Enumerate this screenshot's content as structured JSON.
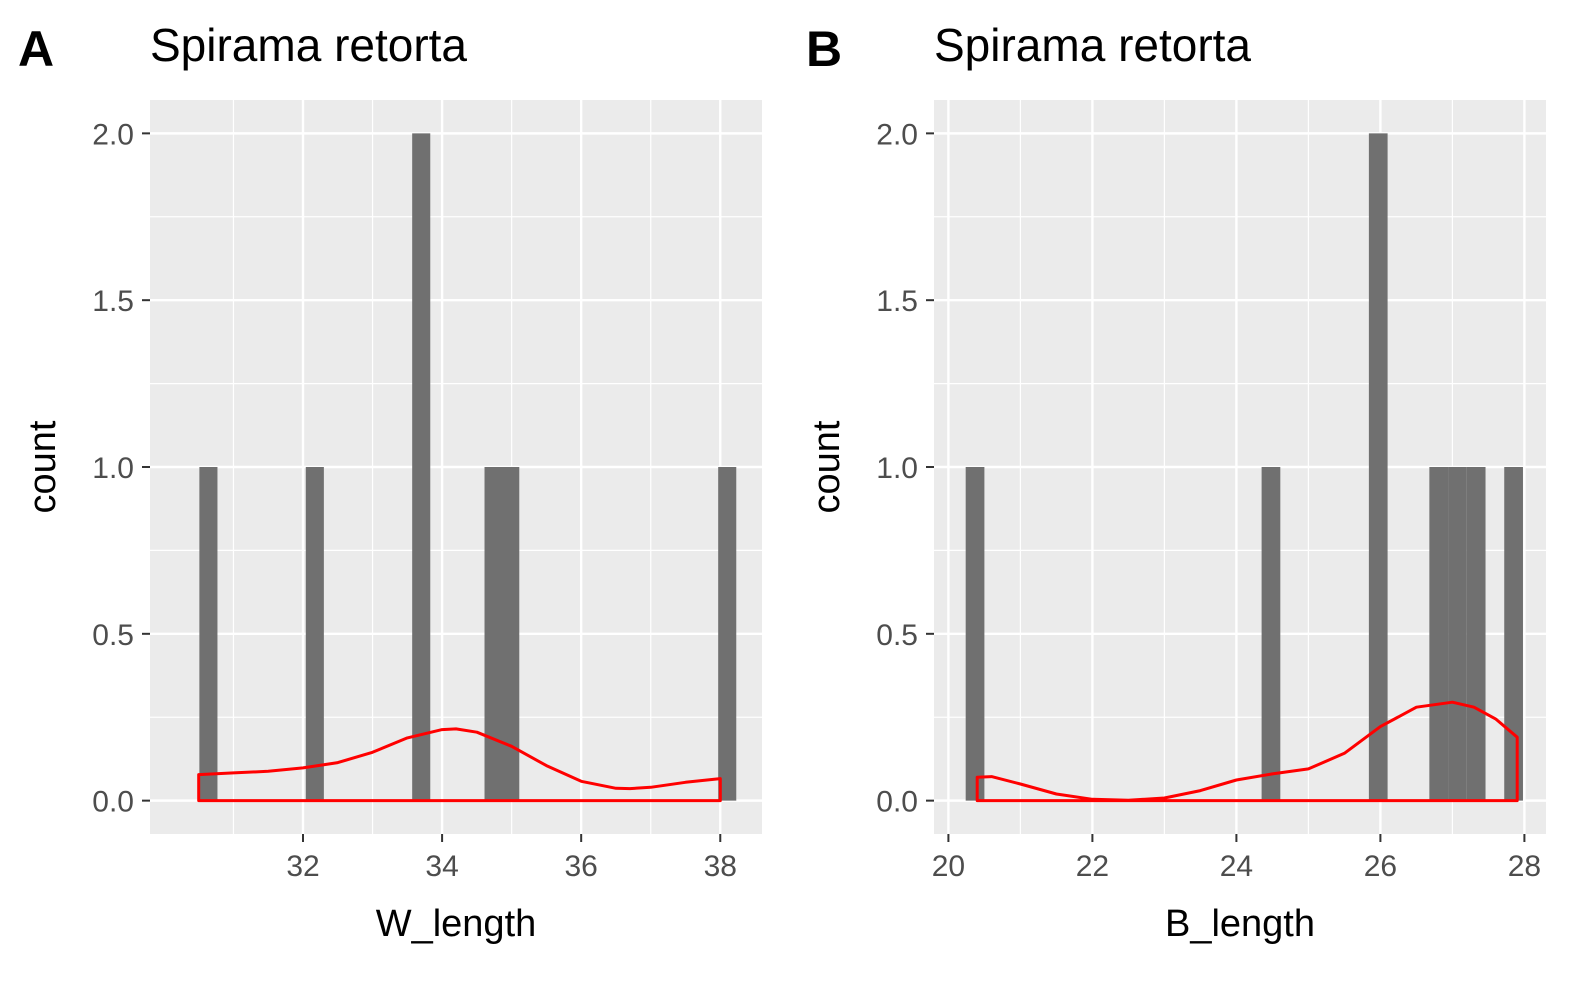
{
  "panels": [
    {
      "label": "A",
      "title": "Spirama retorta"
    },
    {
      "label": "B",
      "title": "Spirama retorta"
    }
  ],
  "chart_data": [
    {
      "type": "bar",
      "title": "Spirama retorta",
      "panel_label": "A",
      "xlabel": "W_length",
      "ylabel": "count",
      "xlim": [
        29.8,
        38.6
      ],
      "ylim": [
        -0.1,
        2.1
      ],
      "xticks": [
        32,
        34,
        36,
        38
      ],
      "yticks": [
        0.0,
        0.5,
        1.0,
        1.5,
        2.0
      ],
      "xtick_labels": [
        "32",
        "34",
        "36",
        "38"
      ],
      "ytick_labels": [
        "0.0",
        "0.5",
        "1.0",
        "1.5",
        "2.0"
      ],
      "bin_width": 0.26,
      "bins": [
        {
          "x": 30.64,
          "count": 1
        },
        {
          "x": 32.17,
          "count": 1
        },
        {
          "x": 33.7,
          "count": 2
        },
        {
          "x": 34.74,
          "count": 1
        },
        {
          "x": 34.98,
          "count": 1
        },
        {
          "x": 38.1,
          "count": 1
        }
      ],
      "density": {
        "x": [
          30.5,
          31.0,
          31.5,
          32.0,
          32.5,
          33.0,
          33.5,
          34.0,
          34.2,
          34.5,
          35.0,
          35.5,
          36.0,
          36.5,
          36.7,
          37.0,
          37.5,
          38.0
        ],
        "y": [
          0.078,
          0.083,
          0.088,
          0.098,
          0.114,
          0.145,
          0.188,
          0.213,
          0.215,
          0.205,
          0.163,
          0.105,
          0.058,
          0.037,
          0.036,
          0.04,
          0.055,
          0.066
        ]
      },
      "colors": {
        "bar": "#707070",
        "density": "#ff0000",
        "panel_bg": "#ebebeb",
        "grid": "#ffffff"
      }
    },
    {
      "type": "bar",
      "title": "Spirama retorta",
      "panel_label": "B",
      "xlabel": "B_length",
      "ylabel": "count",
      "xlim": [
        19.8,
        28.3
      ],
      "ylim": [
        -0.1,
        2.1
      ],
      "xticks": [
        20,
        22,
        24,
        26,
        28
      ],
      "yticks": [
        0.0,
        0.5,
        1.0,
        1.5,
        2.0
      ],
      "xtick_labels": [
        "20",
        "22",
        "24",
        "26",
        "28"
      ],
      "ytick_labels": [
        "0.0",
        "0.5",
        "1.0",
        "1.5",
        "2.0"
      ],
      "bin_width": 0.26,
      "bins": [
        {
          "x": 20.37,
          "count": 1
        },
        {
          "x": 24.48,
          "count": 1
        },
        {
          "x": 25.97,
          "count": 2
        },
        {
          "x": 26.81,
          "count": 1
        },
        {
          "x": 27.07,
          "count": 1
        },
        {
          "x": 27.33,
          "count": 1
        },
        {
          "x": 27.85,
          "count": 1
        }
      ],
      "density": {
        "x": [
          20.4,
          20.6,
          21.0,
          21.5,
          22.0,
          22.5,
          23.0,
          23.5,
          24.0,
          24.5,
          25.0,
          25.5,
          26.0,
          26.5,
          27.0,
          27.3,
          27.6,
          27.9
        ],
        "y": [
          0.07,
          0.072,
          0.05,
          0.02,
          0.004,
          0.001,
          0.008,
          0.03,
          0.062,
          0.08,
          0.095,
          0.142,
          0.222,
          0.28,
          0.295,
          0.28,
          0.245,
          0.19
        ]
      },
      "colors": {
        "bar": "#707070",
        "density": "#ff0000",
        "panel_bg": "#ebebeb",
        "grid": "#ffffff"
      }
    }
  ]
}
